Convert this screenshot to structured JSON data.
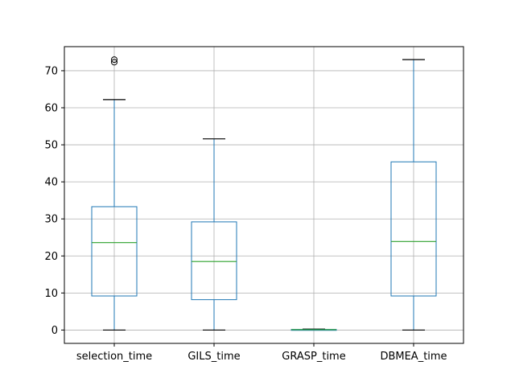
{
  "chart_data": {
    "type": "box",
    "title": "",
    "xlabel": "",
    "ylabel": "",
    "grid": true,
    "legend": "none",
    "ylim": [
      -3.6,
      76.5
    ],
    "yticks": [
      0,
      10,
      20,
      30,
      40,
      50,
      60,
      70
    ],
    "categories": [
      "selection_time",
      "GILS_time",
      "GRASP_time",
      "DBMEA_time"
    ],
    "boxes": [
      {
        "name": "selection_time",
        "whisker_low": 0,
        "q1": 9.2,
        "median": 23.6,
        "q3": 33.3,
        "whisker_high": 62.2,
        "outliers": [
          72.3,
          73.0
        ]
      },
      {
        "name": "GILS_time",
        "whisker_low": 0,
        "q1": 8.2,
        "median": 18.5,
        "q3": 29.2,
        "whisker_high": 51.6,
        "outliers": []
      },
      {
        "name": "GRASP_time",
        "whisker_low": 0,
        "q1": 0.05,
        "median": 0.1,
        "q3": 0.15,
        "whisker_high": 0.25,
        "outliers": []
      },
      {
        "name": "DBMEA_time",
        "whisker_low": 0,
        "q1": 9.2,
        "median": 23.9,
        "q3": 45.4,
        "whisker_high": 73.0,
        "outliers": []
      }
    ],
    "colors": {
      "box": "#1f77b4",
      "median": "#2ca02c",
      "whisker_cap": "#000000",
      "grid": "#b0b0b0",
      "axes": "#000000"
    }
  }
}
